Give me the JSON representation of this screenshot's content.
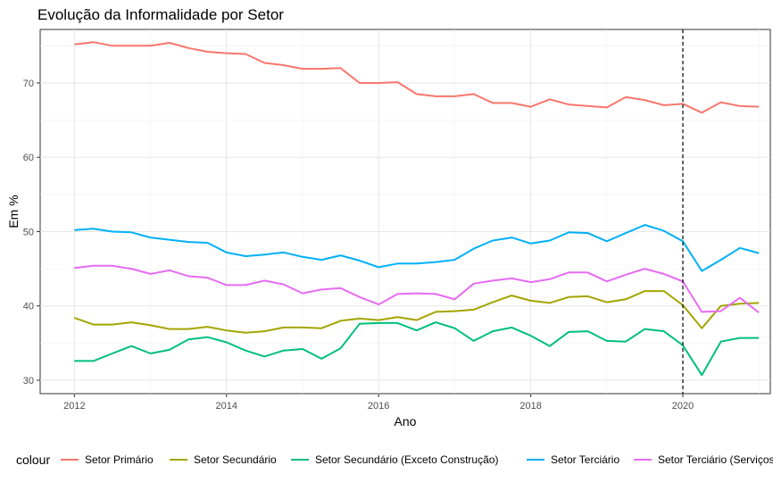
{
  "chart_data": {
    "type": "line",
    "title": "Evolução da Informalidade por Setor",
    "xlabel": "Ano",
    "ylabel": "Em %",
    "xlim": [
      2011.55,
      2021.15
    ],
    "ylim": [
      28.2,
      77.2
    ],
    "x_ticks": [
      2012,
      2014,
      2016,
      2018,
      2020
    ],
    "x_tick_labels": [
      "2012",
      "2014",
      "2016",
      "2018",
      "2020"
    ],
    "y_ticks": [
      30,
      40,
      50,
      60,
      70
    ],
    "y_tick_labels": [
      "30",
      "40",
      "50",
      "60",
      "70"
    ],
    "grid": true,
    "vline": {
      "x": 2020,
      "style": "dashed"
    },
    "legend": {
      "title": "colour",
      "position": "bottom"
    },
    "x": [
      2012,
      2012.25,
      2012.5,
      2012.75,
      2013,
      2013.25,
      2013.5,
      2013.75,
      2014,
      2014.25,
      2014.5,
      2014.75,
      2015,
      2015.25,
      2015.5,
      2015.75,
      2016,
      2016.25,
      2016.5,
      2016.75,
      2017,
      2017.25,
      2017.5,
      2017.75,
      2018,
      2018.25,
      2018.5,
      2018.75,
      2019,
      2019.25,
      2019.5,
      2019.75,
      2020,
      2020.25,
      2020.5,
      2020.75,
      2021
    ],
    "series": [
      {
        "name": "Setor Primário",
        "color": "#F8766D",
        "values": [
          75.2,
          75.5,
          75.0,
          75.0,
          75.0,
          75.4,
          74.7,
          74.2,
          74.0,
          73.9,
          72.7,
          72.4,
          71.9,
          71.9,
          72.0,
          70.0,
          70.0,
          70.1,
          68.5,
          68.2,
          68.2,
          68.5,
          67.3,
          67.3,
          66.8,
          67.8,
          67.1,
          66.9,
          66.7,
          68.1,
          67.7,
          67.0,
          67.2,
          66.0,
          67.4,
          66.9,
          66.8
        ]
      },
      {
        "name": "Setor Secundário",
        "color": "#A3A500",
        "values": [
          38.4,
          37.5,
          37.5,
          37.8,
          37.4,
          36.9,
          36.9,
          37.2,
          36.7,
          36.4,
          36.6,
          37.1,
          37.1,
          37.0,
          38.0,
          38.3,
          38.1,
          38.5,
          38.1,
          39.2,
          39.3,
          39.5,
          40.5,
          41.4,
          40.7,
          40.4,
          41.2,
          41.3,
          40.5,
          40.9,
          42.0,
          42.0,
          40.1,
          37.0,
          40.0,
          40.3,
          40.4
        ]
      },
      {
        "name": "Setor Secundário (Exceto Construção)",
        "color": "#00BF7D",
        "values": [
          32.6,
          32.6,
          33.6,
          34.6,
          33.6,
          34.1,
          35.5,
          35.8,
          35.1,
          34.0,
          33.2,
          34.0,
          34.2,
          32.9,
          34.3,
          37.6,
          37.7,
          37.7,
          36.7,
          37.8,
          37.0,
          35.3,
          36.6,
          37.1,
          36.0,
          34.6,
          36.5,
          36.6,
          35.3,
          35.2,
          36.9,
          36.6,
          34.7,
          30.7,
          35.2,
          35.7,
          35.7
        ]
      },
      {
        "name": "Setor Terciário",
        "color": "#00B0F6",
        "values": [
          50.2,
          50.4,
          50.0,
          49.9,
          49.2,
          48.9,
          48.6,
          48.5,
          47.2,
          46.7,
          46.9,
          47.2,
          46.6,
          46.2,
          46.8,
          46.1,
          45.2,
          45.7,
          45.7,
          45.9,
          46.2,
          47.7,
          48.8,
          49.2,
          48.4,
          48.8,
          49.9,
          49.8,
          48.7,
          49.8,
          50.9,
          50.1,
          48.7,
          44.7,
          46.2,
          47.8,
          47.1
        ]
      },
      {
        "name": "Setor Terciário (Serviços)",
        "color": "#E76BF3",
        "values": [
          45.1,
          45.4,
          45.4,
          45.0,
          44.3,
          44.8,
          44.0,
          43.8,
          42.8,
          42.8,
          43.4,
          42.9,
          41.7,
          42.2,
          42.4,
          41.2,
          40.2,
          41.6,
          41.7,
          41.6,
          40.9,
          43.0,
          43.4,
          43.7,
          43.2,
          43.6,
          44.5,
          44.5,
          43.3,
          44.2,
          45.0,
          44.3,
          43.3,
          39.2,
          39.3,
          41.1,
          39.1
        ]
      }
    ]
  }
}
